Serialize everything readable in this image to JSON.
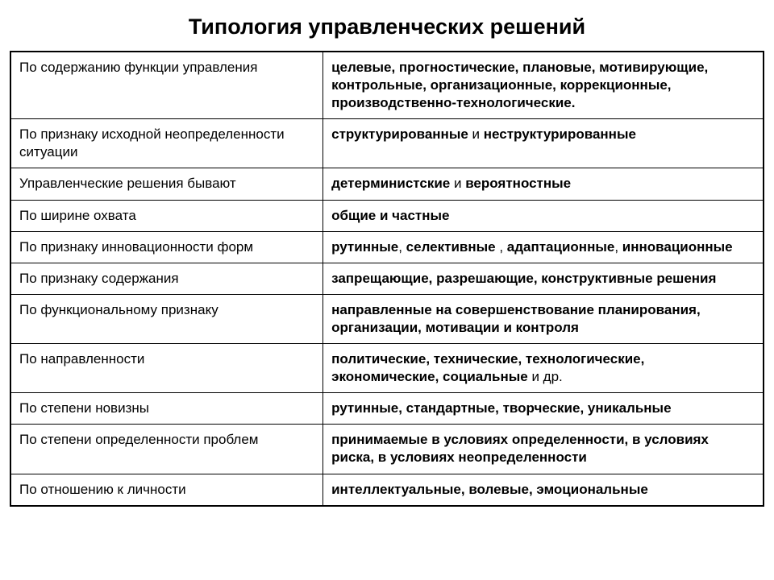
{
  "title": "Типология управленческих решений",
  "background_color": "#ffffff",
  "text_color": "#000000",
  "border_color": "#000000",
  "title_fontsize": 27,
  "cell_fontsize": 17,
  "col0_width_pct": 41.5,
  "col1_width_pct": 58.5,
  "rows": [
    {
      "criterion": "По содержанию функции управления",
      "value_parts": [
        {
          "text": "целевые, прогностические, плановые, мотивирующие, контрольные, организационные, коррекционные, производственно-технологические.",
          "bold": true
        }
      ]
    },
    {
      "criterion": "По признаку исходной неопределенности ситуации",
      "value_parts": [
        {
          "text": "структурированные",
          "bold": true
        },
        {
          "text": " и ",
          "bold": false
        },
        {
          "text": "неструктурированные",
          "bold": true
        }
      ]
    },
    {
      "criterion": "Управленческие решения бывают",
      "value_parts": [
        {
          "text": "детерминистские",
          "bold": true
        },
        {
          "text": " и ",
          "bold": false
        },
        {
          "text": "вероятностные",
          "bold": true
        }
      ]
    },
    {
      "criterion": "По ширине охвата",
      "value_parts": [
        {
          "text": "общие и частные",
          "bold": true
        }
      ]
    },
    {
      "criterion": "По признаку инновационности форм",
      "value_parts": [
        {
          "text": "рутинные",
          "bold": true
        },
        {
          "text": ", ",
          "bold": false
        },
        {
          "text": "селективные",
          "bold": true
        },
        {
          "text": " , ",
          "bold": false
        },
        {
          "text": "адаптационные",
          "bold": true
        },
        {
          "text": ", ",
          "bold": false
        },
        {
          "text": "инновационные",
          "bold": true
        }
      ]
    },
    {
      "criterion": "По признаку содержания",
      "value_parts": [
        {
          "text": "запрещающие, разрешающие, конструктивные решения",
          "bold": true
        }
      ]
    },
    {
      "criterion": "По функциональному признаку",
      "value_parts": [
        {
          "text": "направленные на совершенствование планирования, организации, мотивации и контроля",
          "bold": true
        }
      ]
    },
    {
      "criterion": "По направленности",
      "value_parts": [
        {
          "text": "политические, технические, технологические, экономические, социальные",
          "bold": true
        },
        {
          "text": " и др.",
          "bold": false
        }
      ]
    },
    {
      "criterion": "По степени новизны",
      "value_parts": [
        {
          "text": "рутинные, стандартные, творческие, уникальные",
          "bold": true
        }
      ]
    },
    {
      "criterion": "По степени определенности проблем",
      "value_parts": [
        {
          "text": "принимаемые в условиях определенности, в условиях риска, в условиях неопределенности",
          "bold": true
        }
      ]
    },
    {
      "criterion": "По отношению к личности",
      "value_parts": [
        {
          "text": "интеллектуальные, волевые, эмоциональные",
          "bold": true
        }
      ]
    }
  ]
}
